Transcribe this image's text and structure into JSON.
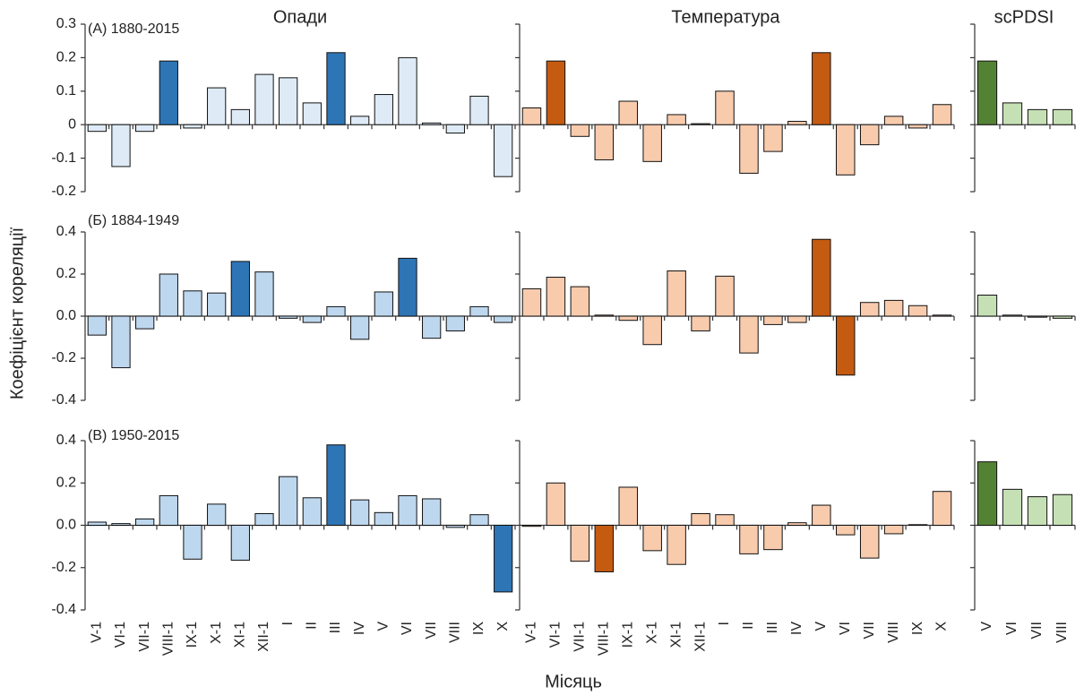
{
  "chart_data": {
    "type": "bar",
    "y_label": "Коефіцієнт кореляції",
    "x_label": "Місяць",
    "columns": [
      {
        "title": "Опади",
        "categories": [
          "V-1",
          "VI-1",
          "VII-1",
          "VIII-1",
          "IX-1",
          "X-1",
          "XI-1",
          "XII-1",
          "I",
          "II",
          "III",
          "IV",
          "V",
          "VI",
          "VII",
          "VIII",
          "IX",
          "X"
        ]
      },
      {
        "title": "Температура",
        "categories": [
          "V-1",
          "VI-1",
          "VII-1",
          "VIII-1",
          "IX-1",
          "X-1",
          "XI-1",
          "XII-1",
          "I",
          "II",
          "III",
          "IV",
          "V",
          "VI",
          "VII",
          "VIII",
          "IX",
          "X"
        ]
      },
      {
        "title": "scPDSI",
        "categories": [
          "V",
          "VI",
          "VII",
          "VIII"
        ]
      }
    ],
    "rows": [
      {
        "label": "(A) 1880-2015",
        "ylim": [
          -0.2,
          0.3
        ],
        "yticks": [
          -0.2,
          -0.1,
          0,
          0.1,
          0.2,
          0.3
        ],
        "panels": [
          {
            "values": [
              -0.02,
              -0.125,
              -0.02,
              0.19,
              -0.01,
              0.11,
              0.045,
              0.15,
              0.14,
              0.065,
              0.215,
              0.025,
              0.09,
              0.2,
              0.005,
              -0.025,
              0.085,
              -0.155
            ],
            "colors": [
              "#deebf7",
              "#deebf7",
              "#deebf7",
              "#2e75b6",
              "#deebf7",
              "#deebf7",
              "#deebf7",
              "#deebf7",
              "#deebf7",
              "#deebf7",
              "#2e75b6",
              "#deebf7",
              "#deebf7",
              "#deebf7",
              "#deebf7",
              "#deebf7",
              "#deebf7",
              "#deebf7"
            ]
          },
          {
            "values": [
              0.05,
              0.19,
              -0.035,
              -0.105,
              0.07,
              -0.11,
              0.03,
              0.003,
              0.1,
              -0.145,
              -0.08,
              0.01,
              0.215,
              -0.15,
              -0.06,
              0.025,
              -0.01,
              0.06
            ],
            "colors": [
              "#f8cbad",
              "#c55a11",
              "#f8cbad",
              "#f8cbad",
              "#f8cbad",
              "#f8cbad",
              "#f8cbad",
              "#f8cbad",
              "#f8cbad",
              "#f8cbad",
              "#f8cbad",
              "#f8cbad",
              "#c55a11",
              "#f8cbad",
              "#f8cbad",
              "#f8cbad",
              "#f8cbad",
              "#f8cbad"
            ]
          },
          {
            "values": [
              0.19,
              0.065,
              0.045,
              0.045
            ],
            "colors": [
              "#548235",
              "#c5e0b4",
              "#c5e0b4",
              "#c5e0b4"
            ]
          }
        ]
      },
      {
        "label": "(Б) 1884-1949",
        "ylim": [
          -0.4,
          0.4
        ],
        "yticks": [
          -0.4,
          -0.2,
          {
            "value": 0,
            "label": "0.0"
          },
          0.2,
          0.4
        ],
        "panels": [
          {
            "values": [
              -0.09,
              -0.245,
              -0.06,
              0.2,
              0.12,
              0.11,
              0.26,
              0.21,
              -0.01,
              -0.03,
              0.045,
              -0.11,
              0.115,
              0.275,
              -0.105,
              -0.07,
              0.045,
              -0.03
            ],
            "colors": [
              "#bdd7ee",
              "#bdd7ee",
              "#bdd7ee",
              "#bdd7ee",
              "#bdd7ee",
              "#bdd7ee",
              "#2e75b6",
              "#bdd7ee",
              "#bdd7ee",
              "#bdd7ee",
              "#bdd7ee",
              "#bdd7ee",
              "#bdd7ee",
              "#2e75b6",
              "#bdd7ee",
              "#bdd7ee",
              "#bdd7ee",
              "#bdd7ee"
            ]
          },
          {
            "values": [
              0.13,
              0.185,
              0.14,
              0.005,
              -0.02,
              -0.135,
              0.215,
              -0.07,
              0.19,
              -0.175,
              -0.04,
              -0.03,
              0.365,
              -0.28,
              0.065,
              0.075,
              0.05,
              0.005
            ],
            "colors": [
              "#f8cbad",
              "#f8cbad",
              "#f8cbad",
              "#f8cbad",
              "#f8cbad",
              "#f8cbad",
              "#f8cbad",
              "#f8cbad",
              "#f8cbad",
              "#f8cbad",
              "#f8cbad",
              "#f8cbad",
              "#c55a11",
              "#c55a11",
              "#f8cbad",
              "#f8cbad",
              "#f8cbad",
              "#f8cbad"
            ]
          },
          {
            "values": [
              0.1,
              0.005,
              -0.005,
              -0.01
            ],
            "colors": [
              "#c5e0b4",
              "#c5e0b4",
              "#c5e0b4",
              "#c5e0b4"
            ]
          }
        ]
      },
      {
        "label": "(B) 1950-2015",
        "ylim": [
          -0.4,
          0.4
        ],
        "yticks": [
          -0.4,
          -0.2,
          {
            "value": 0,
            "label": "0.0"
          },
          0.2,
          0.4
        ],
        "panels": [
          {
            "values": [
              0.015,
              0.008,
              0.03,
              0.14,
              -0.16,
              0.1,
              -0.165,
              0.055,
              0.23,
              0.13,
              0.38,
              0.12,
              0.06,
              0.14,
              0.125,
              -0.01,
              0.05,
              -0.315
            ],
            "colors": [
              "#bdd7ee",
              "#bdd7ee",
              "#bdd7ee",
              "#bdd7ee",
              "#bdd7ee",
              "#bdd7ee",
              "#bdd7ee",
              "#bdd7ee",
              "#bdd7ee",
              "#bdd7ee",
              "#2e75b6",
              "#bdd7ee",
              "#bdd7ee",
              "#bdd7ee",
              "#bdd7ee",
              "#bdd7ee",
              "#bdd7ee",
              "#2e75b6"
            ]
          },
          {
            "values": [
              -0.005,
              0.2,
              -0.17,
              -0.22,
              0.18,
              -0.12,
              -0.185,
              0.055,
              0.05,
              -0.135,
              -0.115,
              0.012,
              0.095,
              -0.045,
              -0.155,
              -0.04,
              0.003,
              0.16
            ],
            "colors": [
              "#f8cbad",
              "#f8cbad",
              "#f8cbad",
              "#c55a11",
              "#f8cbad",
              "#f8cbad",
              "#f8cbad",
              "#f8cbad",
              "#f8cbad",
              "#f8cbad",
              "#f8cbad",
              "#f8cbad",
              "#f8cbad",
              "#f8cbad",
              "#f8cbad",
              "#f8cbad",
              "#f8cbad",
              "#f8cbad"
            ]
          },
          {
            "values": [
              0.3,
              0.17,
              0.135,
              0.145
            ],
            "colors": [
              "#548235",
              "#c5e0b4",
              "#c5e0b4",
              "#c5e0b4"
            ]
          }
        ]
      }
    ]
  }
}
